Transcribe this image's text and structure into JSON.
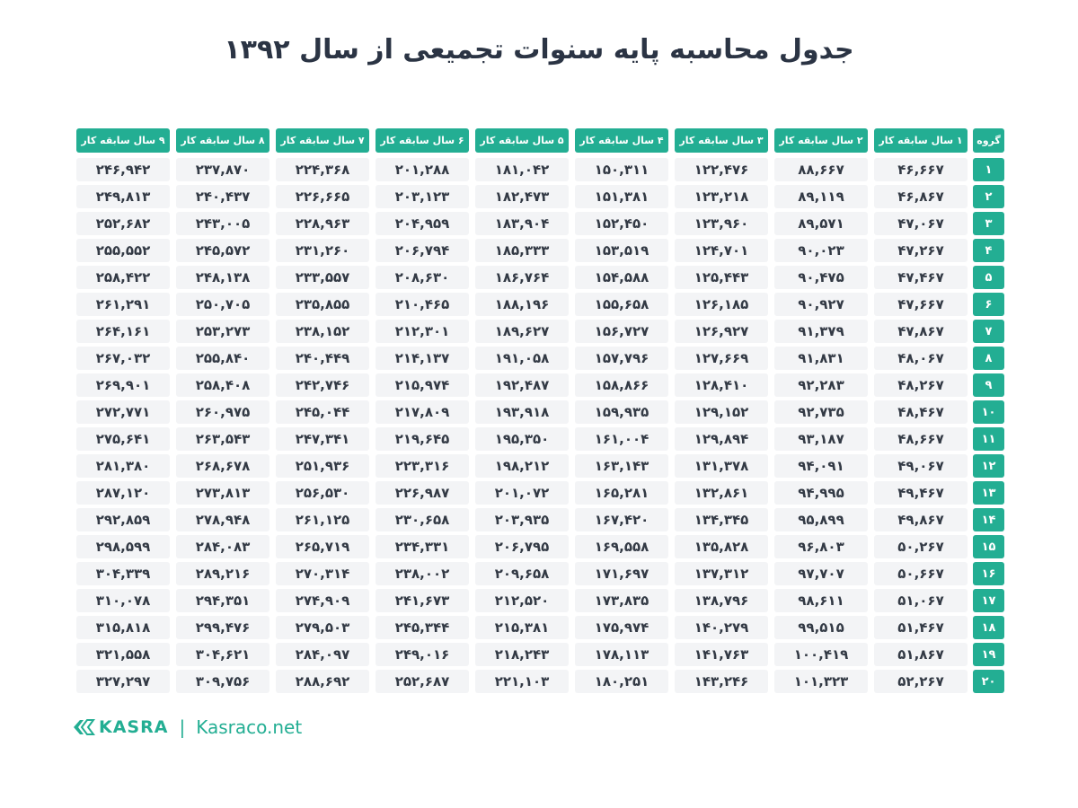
{
  "title": "جدول محاسبه پایه سنوات تجمیعی از سال ۱۳۹۲",
  "accent_color": "#23ae93",
  "header": {
    "group": "گروه",
    "columns": [
      "۱ سال سابقه کار",
      "۲ سال سابقه کار",
      "۳ سال سابقه کار",
      "۴ سال سابقه کار",
      "۵ سال سابقه کار",
      "۶ سال سابقه کار",
      "۷ سال سابقه کار",
      "۸ سال سابقه کار",
      "۹ سال سابقه کار"
    ]
  },
  "rows": [
    {
      "group": "۱",
      "values": [
        "۴۶,۶۶۷",
        "۸۸,۶۶۷",
        "۱۲۲,۴۷۶",
        "۱۵۰,۳۱۱",
        "۱۸۱,۰۴۲",
        "۲۰۱,۲۸۸",
        "۲۲۴,۳۶۸",
        "۲۳۷,۸۷۰",
        "۲۴۶,۹۴۲"
      ]
    },
    {
      "group": "۲",
      "values": [
        "۴۶,۸۶۷",
        "۸۹,۱۱۹",
        "۱۲۳,۲۱۸",
        "۱۵۱,۳۸۱",
        "۱۸۲,۴۷۳",
        "۲۰۳,۱۲۳",
        "۲۲۶,۶۶۵",
        "۲۴۰,۴۳۷",
        "۲۴۹,۸۱۳"
      ]
    },
    {
      "group": "۳",
      "values": [
        "۴۷,۰۶۷",
        "۸۹,۵۷۱",
        "۱۲۳,۹۶۰",
        "۱۵۲,۴۵۰",
        "۱۸۳,۹۰۴",
        "۲۰۴,۹۵۹",
        "۲۲۸,۹۶۳",
        "۲۴۳,۰۰۵",
        "۲۵۲,۶۸۲"
      ]
    },
    {
      "group": "۴",
      "values": [
        "۴۷,۲۶۷",
        "۹۰,۰۲۳",
        "۱۲۴,۷۰۱",
        "۱۵۳,۵۱۹",
        "۱۸۵,۳۳۳",
        "۲۰۶,۷۹۴",
        "۲۳۱,۲۶۰",
        "۲۴۵,۵۷۲",
        "۲۵۵,۵۵۲"
      ]
    },
    {
      "group": "۵",
      "values": [
        "۴۷,۴۶۷",
        "۹۰,۴۷۵",
        "۱۲۵,۴۴۳",
        "۱۵۴,۵۸۸",
        "۱۸۶,۷۶۴",
        "۲۰۸,۶۳۰",
        "۲۳۳,۵۵۷",
        "۲۴۸,۱۳۸",
        "۲۵۸,۴۲۲"
      ]
    },
    {
      "group": "۶",
      "values": [
        "۴۷,۶۶۷",
        "۹۰,۹۲۷",
        "۱۲۶,۱۸۵",
        "۱۵۵,۶۵۸",
        "۱۸۸,۱۹۶",
        "۲۱۰,۴۶۵",
        "۲۳۵,۸۵۵",
        "۲۵۰,۷۰۵",
        "۲۶۱,۲۹۱"
      ]
    },
    {
      "group": "۷",
      "values": [
        "۴۷,۸۶۷",
        "۹۱,۳۷۹",
        "۱۲۶,۹۲۷",
        "۱۵۶,۷۲۷",
        "۱۸۹,۶۲۷",
        "۲۱۲,۳۰۱",
        "۲۳۸,۱۵۲",
        "۲۵۳,۲۷۳",
        "۲۶۴,۱۶۱"
      ]
    },
    {
      "group": "۸",
      "values": [
        "۴۸,۰۶۷",
        "۹۱,۸۳۱",
        "۱۲۷,۶۶۹",
        "۱۵۷,۷۹۶",
        "۱۹۱,۰۵۸",
        "۲۱۴,۱۳۷",
        "۲۴۰,۴۴۹",
        "۲۵۵,۸۴۰",
        "۲۶۷,۰۳۲"
      ]
    },
    {
      "group": "۹",
      "values": [
        "۴۸,۲۶۷",
        "۹۲,۲۸۳",
        "۱۲۸,۴۱۰",
        "۱۵۸,۸۶۶",
        "۱۹۲,۴۸۷",
        "۲۱۵,۹۷۴",
        "۲۴۲,۷۴۶",
        "۲۵۸,۴۰۸",
        "۲۶۹,۹۰۱"
      ]
    },
    {
      "group": "۱۰",
      "values": [
        "۴۸,۴۶۷",
        "۹۲,۷۳۵",
        "۱۲۹,۱۵۲",
        "۱۵۹,۹۳۵",
        "۱۹۳,۹۱۸",
        "۲۱۷,۸۰۹",
        "۲۴۵,۰۴۴",
        "۲۶۰,۹۷۵",
        "۲۷۲,۷۷۱"
      ]
    },
    {
      "group": "۱۱",
      "values": [
        "۴۸,۶۶۷",
        "۹۳,۱۸۷",
        "۱۲۹,۸۹۴",
        "۱۶۱,۰۰۴",
        "۱۹۵,۳۵۰",
        "۲۱۹,۶۴۵",
        "۲۴۷,۳۴۱",
        "۲۶۳,۵۴۳",
        "۲۷۵,۶۴۱"
      ]
    },
    {
      "group": "۱۲",
      "values": [
        "۴۹,۰۶۷",
        "۹۴,۰۹۱",
        "۱۳۱,۳۷۸",
        "۱۶۳,۱۴۳",
        "۱۹۸,۲۱۲",
        "۲۲۳,۳۱۶",
        "۲۵۱,۹۳۶",
        "۲۶۸,۶۷۸",
        "۲۸۱,۳۸۰"
      ]
    },
    {
      "group": "۱۳",
      "values": [
        "۴۹,۴۶۷",
        "۹۴,۹۹۵",
        "۱۳۲,۸۶۱",
        "۱۶۵,۲۸۱",
        "۲۰۱,۰۷۲",
        "۲۲۶,۹۸۷",
        "۲۵۶,۵۳۰",
        "۲۷۳,۸۱۳",
        "۲۸۷,۱۲۰"
      ]
    },
    {
      "group": "۱۴",
      "values": [
        "۴۹,۸۶۷",
        "۹۵,۸۹۹",
        "۱۳۴,۳۴۵",
        "۱۶۷,۴۲۰",
        "۲۰۳,۹۳۵",
        "۲۳۰,۶۵۸",
        "۲۶۱,۱۲۵",
        "۲۷۸,۹۴۸",
        "۲۹۲,۸۵۹"
      ]
    },
    {
      "group": "۱۵",
      "values": [
        "۵۰,۲۶۷",
        "۹۶,۸۰۳",
        "۱۳۵,۸۲۸",
        "۱۶۹,۵۵۸",
        "۲۰۶,۷۹۵",
        "۲۳۴,۳۳۱",
        "۲۶۵,۷۱۹",
        "۲۸۴,۰۸۳",
        "۲۹۸,۵۹۹"
      ]
    },
    {
      "group": "۱۶",
      "values": [
        "۵۰,۶۶۷",
        "۹۷,۷۰۷",
        "۱۳۷,۳۱۲",
        "۱۷۱,۶۹۷",
        "۲۰۹,۶۵۸",
        "۲۳۸,۰۰۲",
        "۲۷۰,۳۱۴",
        "۲۸۹,۲۱۶",
        "۳۰۴,۳۳۹"
      ]
    },
    {
      "group": "۱۷",
      "values": [
        "۵۱,۰۶۷",
        "۹۸,۶۱۱",
        "۱۳۸,۷۹۶",
        "۱۷۳,۸۳۵",
        "۲۱۲,۵۲۰",
        "۲۴۱,۶۷۳",
        "۲۷۴,۹۰۹",
        "۲۹۴,۳۵۱",
        "۳۱۰,۰۷۸"
      ]
    },
    {
      "group": "۱۸",
      "values": [
        "۵۱,۴۶۷",
        "۹۹,۵۱۵",
        "۱۴۰,۲۷۹",
        "۱۷۵,۹۷۴",
        "۲۱۵,۳۸۱",
        "۲۴۵,۳۴۴",
        "۲۷۹,۵۰۳",
        "۲۹۹,۴۷۶",
        "۳۱۵,۸۱۸"
      ]
    },
    {
      "group": "۱۹",
      "values": [
        "۵۱,۸۶۷",
        "۱۰۰,۴۱۹",
        "۱۴۱,۷۶۳",
        "۱۷۸,۱۱۳",
        "۲۱۸,۲۴۳",
        "۲۴۹,۰۱۶",
        "۲۸۴,۰۹۷",
        "۳۰۴,۶۲۱",
        "۳۲۱,۵۵۸"
      ]
    },
    {
      "group": "۲۰",
      "values": [
        "۵۲,۲۶۷",
        "۱۰۱,۳۲۳",
        "۱۴۳,۲۴۶",
        "۱۸۰,۲۵۱",
        "۲۲۱,۱۰۳",
        "۲۵۲,۶۸۷",
        "۲۸۸,۶۹۲",
        "۳۰۹,۷۵۶",
        "۳۲۷,۲۹۷"
      ]
    }
  ],
  "footer": {
    "brand": "KASRA",
    "separator": "|",
    "website": "Kasraco.net",
    "logo_icon": "kasra-logo-icon"
  }
}
